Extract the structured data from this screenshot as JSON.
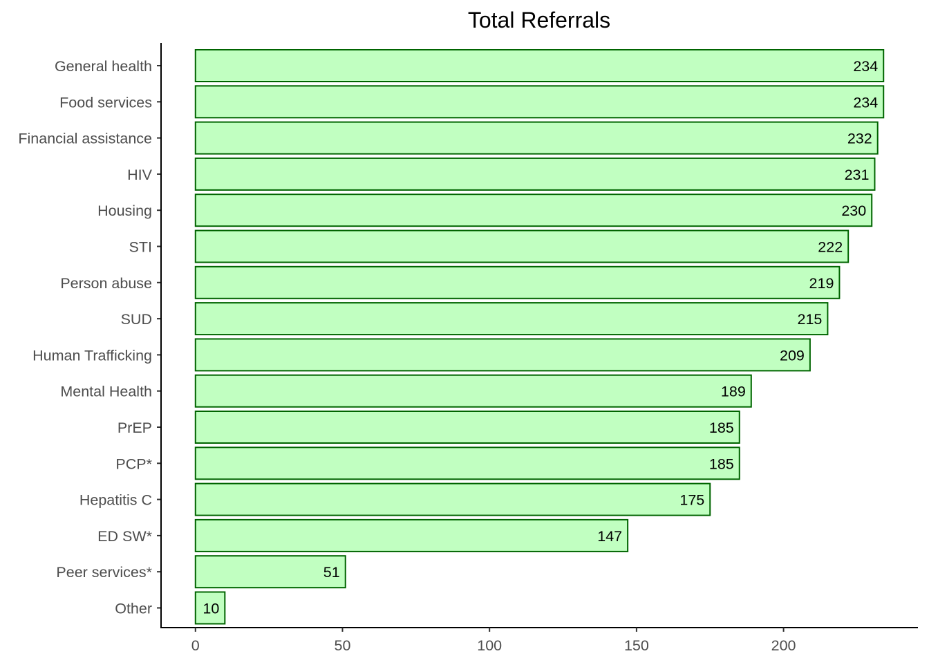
{
  "chart_data": {
    "type": "bar",
    "orientation": "horizontal",
    "title": "Total Referrals",
    "xlabel": "",
    "ylabel": "",
    "categories": [
      "General health",
      "Food services",
      "Financial assistance",
      "HIV",
      "Housing",
      "STI",
      "Person abuse",
      "SUD",
      "Human Trafficking",
      "Mental Health",
      "PrEP",
      "PCP*",
      "Hepatitis C",
      "ED SW*",
      "Peer services*",
      "Other"
    ],
    "values": [
      234,
      234,
      232,
      231,
      230,
      222,
      219,
      215,
      209,
      189,
      185,
      185,
      175,
      147,
      51,
      10
    ],
    "xlim": [
      -11.7,
      245.7
    ],
    "x_ticks": [
      0,
      50,
      100,
      150,
      200
    ],
    "x_tick_labels": [
      "0",
      "50",
      "100",
      "150",
      "200"
    ],
    "grid": false,
    "legend": "none",
    "data_labels": true,
    "colors": {
      "bar_fill": "#c1ffc1",
      "bar_stroke": "#006400",
      "axis": "#000000",
      "tick_label": "#4d4d4d",
      "title": "#000000",
      "value_label": "#000000"
    }
  }
}
